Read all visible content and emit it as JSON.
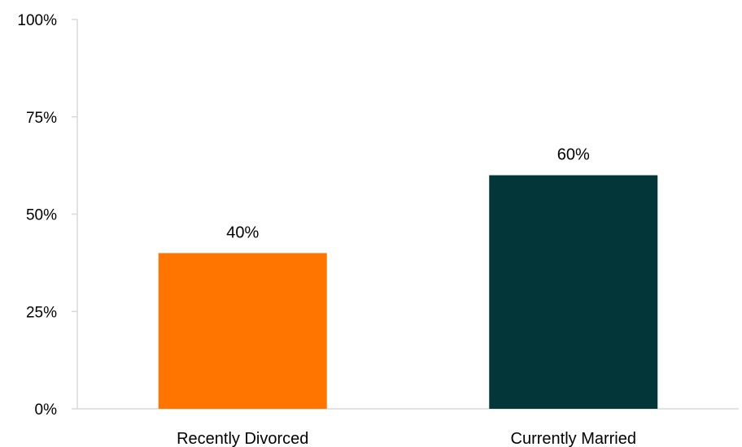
{
  "chart_data": {
    "type": "bar",
    "categories": [
      "Recently Divorced",
      "Currently Married"
    ],
    "values": [
      40,
      60
    ],
    "value_labels": [
      "40%",
      "60%"
    ],
    "bar_colors": [
      "#ff7500",
      "#023639"
    ],
    "ylim": [
      0,
      100
    ],
    "yticks": [
      0,
      25,
      50,
      75,
      100
    ],
    "ytick_labels": [
      "0%",
      "25%",
      "50%",
      "75%",
      "100%"
    ],
    "grid": false,
    "legend": "none"
  }
}
